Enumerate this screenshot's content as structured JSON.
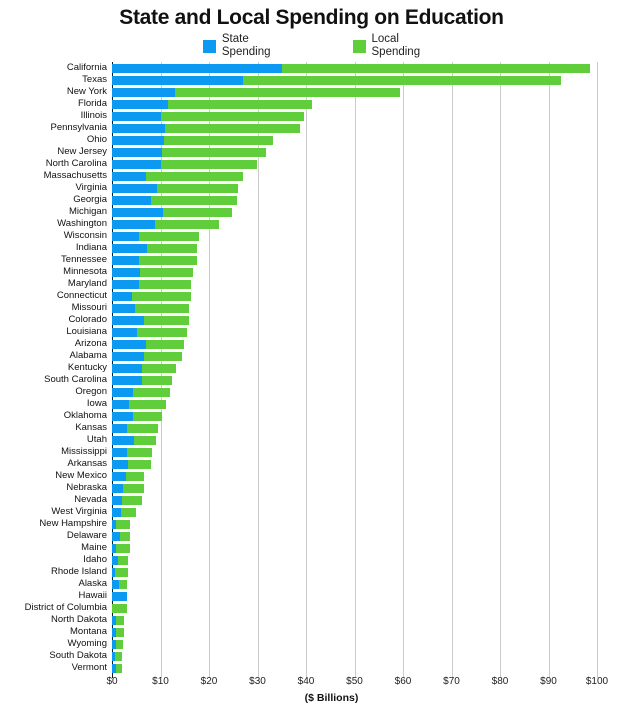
{
  "chart_data": {
    "type": "bar",
    "stacked": true,
    "orientation": "horizontal",
    "title": "State and Local Spending on Education",
    "xlabel": "($ Billions)",
    "xlim": [
      0,
      100
    ],
    "grid": true,
    "legend_position": "top",
    "xtick_values": [
      0,
      10,
      20,
      30,
      40,
      50,
      60,
      70,
      80,
      90,
      100
    ],
    "xtick_labels": [
      "$0",
      "$10",
      "$20",
      "$30",
      "$40",
      "$50",
      "$60",
      "$70",
      "$80",
      "$90",
      "$100"
    ],
    "categories": [
      "California",
      "Texas",
      "New York",
      "Florida",
      "Illinois",
      "Pennsylvania",
      "Ohio",
      "New Jersey",
      "North Carolina",
      "Massachusetts",
      "Virginia",
      "Georgia",
      "Michigan",
      "Washington",
      "Wisconsin",
      "Indiana",
      "Tennessee",
      "Minnesota",
      "Maryland",
      "Connecticut",
      "Missouri",
      "Colorado",
      "Louisiana",
      "Arizona",
      "Alabama",
      "Kentucky",
      "South Carolina",
      "Oregon",
      "Iowa",
      "Oklahoma",
      "Kansas",
      "Utah",
      "Mississippi",
      "Arkansas",
      "New Mexico",
      "Nebraska",
      "Nevada",
      "West Virginia",
      "New Hampshire",
      "Delaware",
      "Maine",
      "Idaho",
      "Rhode Island",
      "Alaska",
      "Hawaii",
      "District of Columbia",
      "North Dakota",
      "Montana",
      "Wyoming",
      "South Dakota",
      "Vermont"
    ],
    "series": [
      {
        "name": "State Spending",
        "legend_label": "State\nSpending",
        "color": "#0b99f2",
        "values": [
          35,
          27,
          13,
          11.5,
          10,
          11,
          10.8,
          10.3,
          10.2,
          7.1,
          9.2,
          8,
          10.6,
          8.8,
          5.5,
          7.2,
          5.5,
          5.7,
          5.5,
          4.2,
          4.7,
          6.5,
          5.1,
          7,
          6.5,
          6.2,
          6.2,
          4.3,
          3.6,
          4.3,
          3,
          4.6,
          3.1,
          3.3,
          2.8,
          2.3,
          2.1,
          1.9,
          0.8,
          1.6,
          0.9,
          1.2,
          0.7,
          1.4,
          3.1,
          0,
          0.9,
          0.8,
          0.9,
          0.6,
          0.8
        ]
      },
      {
        "name": "Local Spending",
        "legend_label": "Local\nSpending",
        "color": "#5fce3a",
        "values": [
          63.5,
          65.5,
          46.3,
          29.7,
          29.6,
          27.7,
          22.3,
          21.5,
          19.6,
          19.9,
          16.8,
          17.7,
          14.2,
          13.2,
          12.5,
          10.3,
          12,
          11,
          10.8,
          12.1,
          11.2,
          9.3,
          10.3,
          7.8,
          7.9,
          6.9,
          6.2,
          7.6,
          7.5,
          6,
          6.5,
          4.5,
          5.1,
          4.7,
          3.9,
          4.3,
          4.1,
          3.1,
          3.0,
          2.2,
          2.9,
          2.1,
          2.5,
          1.7,
          0,
          3.0,
          1.6,
          1.7,
          1.4,
          1.5,
          1.3
        ]
      }
    ],
    "colors": {
      "state_bar": "#0b99f2",
      "local_bar": "#5fce3a",
      "gridline": "#cccccc",
      "axis_line": "#1a1a1a"
    }
  }
}
